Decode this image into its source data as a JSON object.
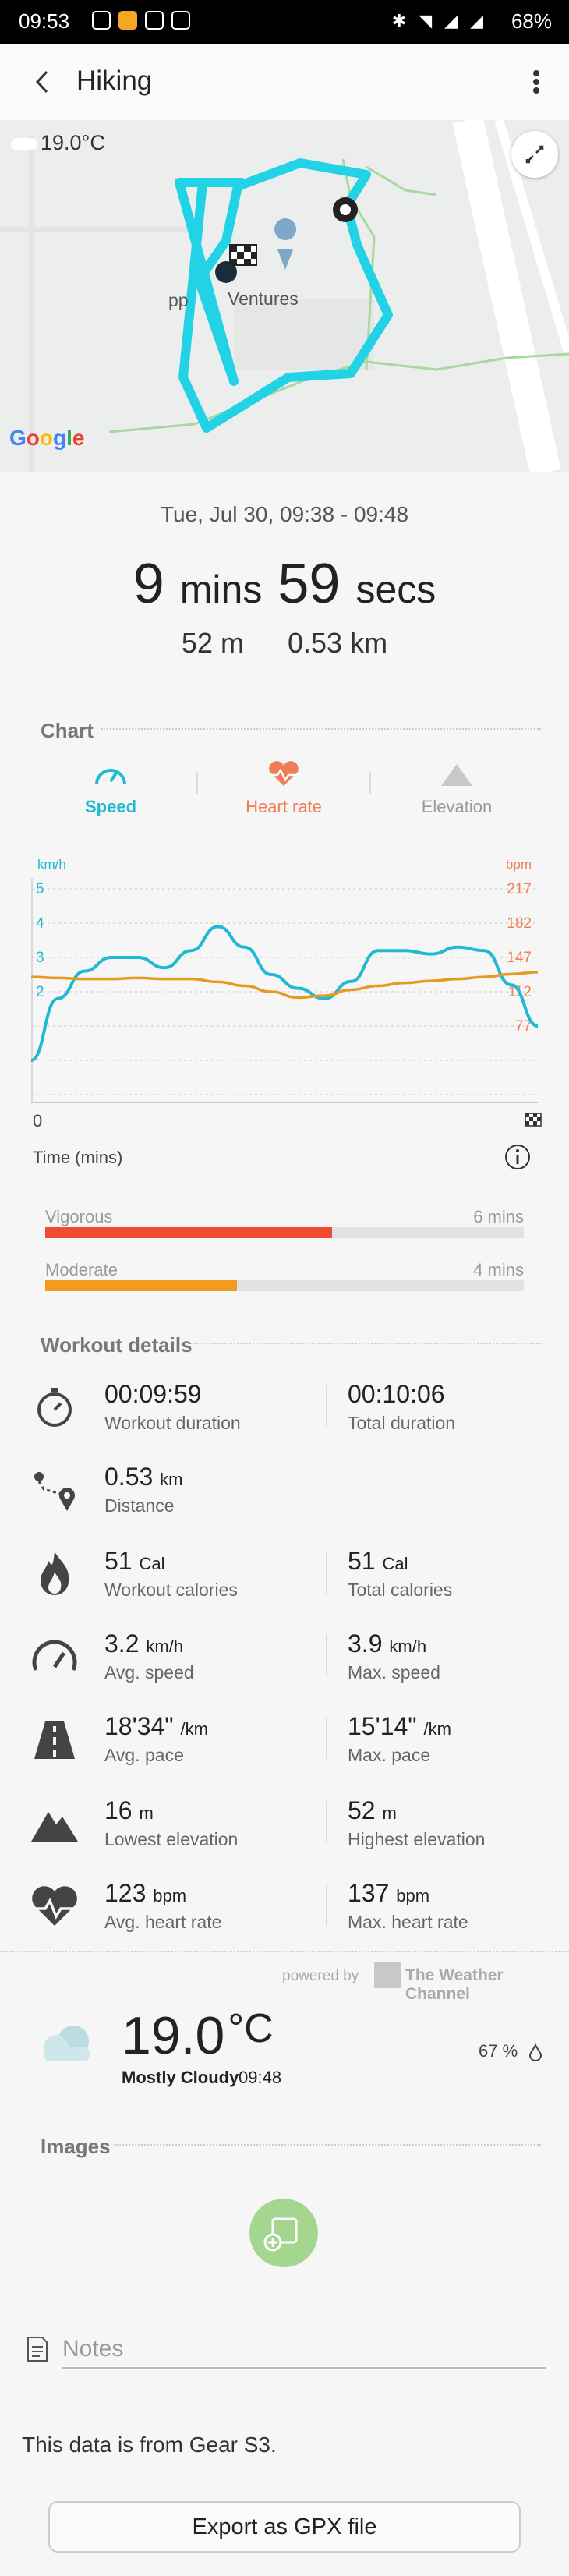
{
  "status_bar": {
    "time": "09:53",
    "battery": "68%"
  },
  "app_bar": {
    "title": "Hiking"
  },
  "map": {
    "temperature": "19.0°C",
    "label_pp": "pp",
    "label_ventures": "Ventures",
    "google_letters": [
      "G",
      "o",
      "o",
      "g",
      "l",
      "e"
    ]
  },
  "summary": {
    "date_range": "Tue, Jul 30, 09:38 - 09:48",
    "duration_min": "9",
    "duration_min_unit": "mins",
    "duration_sec": "59",
    "duration_sec_unit": "secs",
    "distance_m": "52 m",
    "distance_km": "0.53 km"
  },
  "chart_section": {
    "title": "Chart",
    "tabs": [
      {
        "label": "Speed",
        "color": "#1fb9d3",
        "active": true
      },
      {
        "label": "Heart rate",
        "color": "#f07d55",
        "active": false
      },
      {
        "label": "Elevation",
        "color": "#b0b0b0",
        "active": false
      }
    ],
    "x_start_label": "0",
    "x_axis_label": "Time (mins)"
  },
  "chart_data": {
    "type": "line",
    "left_axis": {
      "unit": "km/h",
      "ticks": [
        5,
        4,
        3,
        2
      ],
      "color": "#1fb9d3"
    },
    "right_axis": {
      "unit": "bpm",
      "ticks": [
        217,
        182,
        147,
        112,
        77
      ],
      "color": "#f07d55"
    },
    "series": [
      {
        "color": "#1fb9d3",
        "axis": "left",
        "values": [
          0.0,
          1.8,
          2.6,
          3.0,
          3.0,
          2.7,
          3.2,
          3.9,
          3.3,
          2.5,
          2.1,
          1.8,
          2.3,
          3.2,
          3.2,
          3.1,
          3.3,
          3.2,
          2.2,
          1.0
        ]
      },
      {
        "color": "#e69a1e",
        "axis": "right",
        "values": [
          127,
          126,
          125,
          125,
          126,
          125,
          125,
          122,
          118,
          112,
          106,
          108,
          114,
          118,
          121,
          123,
          125,
          127,
          130,
          132
        ]
      }
    ]
  },
  "intensity": {
    "vigorous": {
      "label": "Vigorous",
      "value": "6 mins",
      "fraction": 0.6,
      "color": "#f04a30"
    },
    "moderate": {
      "label": "Moderate",
      "value": "4 mins",
      "fraction": 0.4,
      "color": "#f39b1e"
    }
  },
  "workout_details": {
    "title": "Workout details",
    "rows": [
      {
        "icon": "stopwatch-icon",
        "left": {
          "value": "00:09:59",
          "unit": "",
          "label": "Workout duration"
        },
        "right": {
          "value": "00:10:06",
          "unit": "",
          "label": "Total duration"
        }
      },
      {
        "icon": "route-icon",
        "left": {
          "value": "0.53",
          "unit": "km",
          "label": "Distance"
        },
        "right": null
      },
      {
        "icon": "flame-icon",
        "left": {
          "value": "51",
          "unit": "Cal",
          "label": "Workout calories"
        },
        "right": {
          "value": "51",
          "unit": "Cal",
          "label": "Total calories"
        }
      },
      {
        "icon": "speedometer-icon",
        "left": {
          "value": "3.2",
          "unit": "km/h",
          "label": "Avg. speed"
        },
        "right": {
          "value": "3.9",
          "unit": "km/h",
          "label": "Max. speed"
        }
      },
      {
        "icon": "road-icon",
        "left": {
          "value": "18'34\"",
          "unit": "/km",
          "label": "Avg. pace"
        },
        "right": {
          "value": "15'14\"",
          "unit": "/km",
          "label": "Max. pace"
        }
      },
      {
        "icon": "mountain-icon",
        "left": {
          "value": "16",
          "unit": "m",
          "label": "Lowest elevation"
        },
        "right": {
          "value": "52",
          "unit": "m",
          "label": "Highest elevation"
        }
      },
      {
        "icon": "heart-rate-icon",
        "left": {
          "value": "123",
          "unit": "bpm",
          "label": "Avg. heart rate"
        },
        "right": {
          "value": "137",
          "unit": "bpm",
          "label": "Max. heart rate"
        }
      }
    ]
  },
  "weather": {
    "powered_by": "powered by",
    "provider": "The Weather Channel",
    "temperature": "19.0",
    "unit": "°C",
    "condition": "Mostly Cloudy",
    "time": "09:48",
    "humidity": "67 %"
  },
  "images_section": {
    "title": "Images"
  },
  "notes": {
    "placeholder": "Notes"
  },
  "footer": {
    "source_note": "This data is from Gear S3.",
    "export_label": "Export as GPX file"
  }
}
